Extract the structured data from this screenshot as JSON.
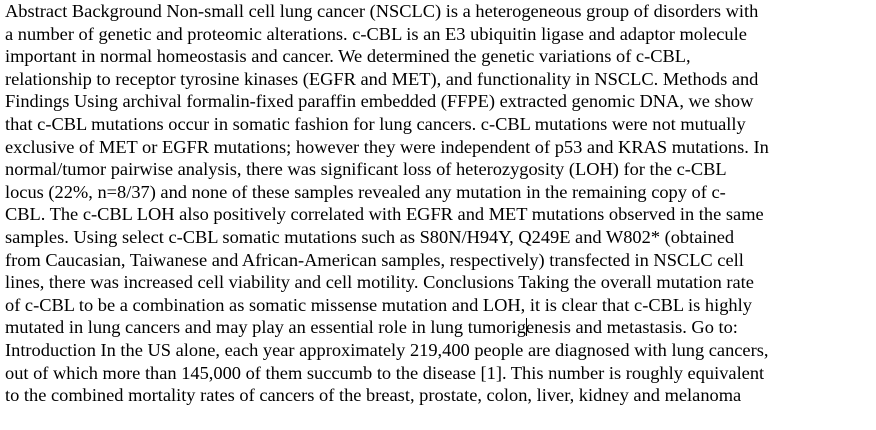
{
  "document": {
    "lines": [
      "Abstract Background  Non-small cell lung cancer (NSCLC) is a heterogeneous group of disorders with",
      "a number of genetic and proteomic alterations. c-CBL is an E3 ubiquitin ligase and adaptor molecule",
      "important in normal homeostasis and cancer. We determined the genetic variations of c-CBL,",
      "relationship to receptor tyrosine kinases (EGFR and MET), and functionality in NSCLC.  Methods and",
      "Findings  Using archival formalin-fixed paraffin embedded (FFPE) extracted genomic DNA, we show",
      "that c-CBL mutations occur in somatic fashion for lung cancers. c-CBL mutations were not mutually",
      "exclusive of MET or EGFR mutations; however they were independent of p53 and KRAS mutations. In",
      "normal/tumor pairwise analysis, there was significant loss of heterozygosity (LOH) for the c-CBL",
      "locus (22%, n=8/37) and none of these samples revealed any mutation in the remaining copy of c-",
      "CBL. The c-CBL LOH also positively correlated with EGFR and MET mutations observed in the same",
      "samples. Using select c-CBL somatic mutations such as S80N/H94Y, Q249E and W802* (obtained",
      "from Caucasian, Taiwanese and African-American samples, respectively) transfected in NSCLC cell",
      "lines, there was increased cell viability and cell motility.  Conclusions  Taking the overall mutation rate",
      "of c-CBL to be a combination as somatic missense mutation and LOH, it is clear that c-CBL is highly"
    ],
    "cursor_line": {
      "before": "mutated in lung cancers and may play an essential role in lung tumorig",
      "after": "enesis and metastasis.  Go to:"
    },
    "lines_after": [
      "Introduction In the US alone, each year approximately 219,400 people are diagnosed with lung cancers,",
      "out of which more than 145,000 of them succumb to the disease [1]. This number is roughly equivalent",
      "to the combined mortality rates of cancers of the breast, prostate, colon, liver, kidney and melanoma"
    ]
  }
}
